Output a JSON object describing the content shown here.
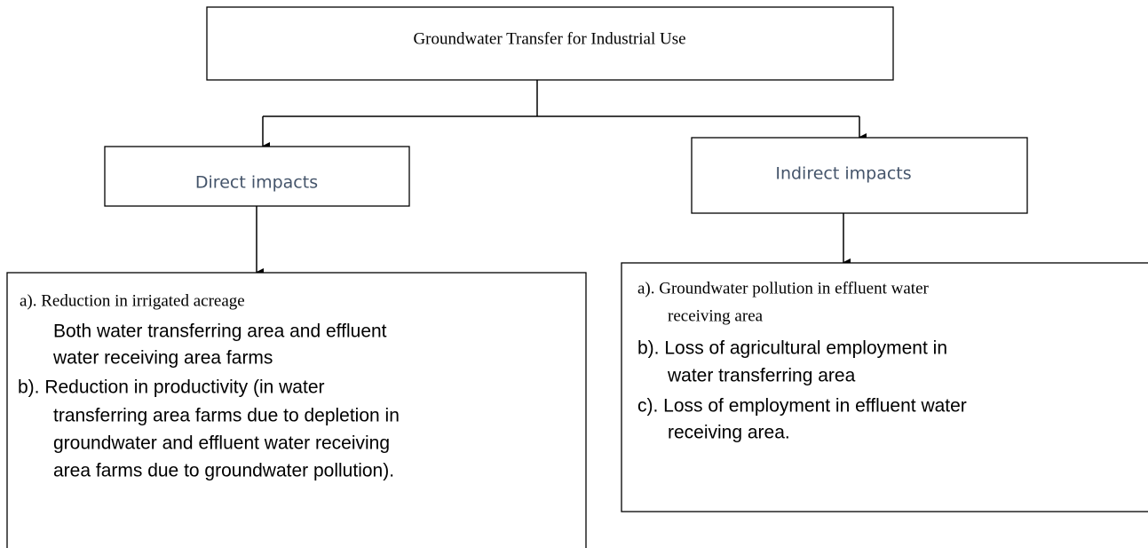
{
  "title": "Groundwater Transfer for Industrial Use",
  "direct": {
    "label": "Direct impacts",
    "lines": [
      "a). Reduction in irrigated acreage",
      "Both water transferring area and effluent",
      "water receiving area farms",
      "b). Reduction in productivity (in water",
      "transferring area farms due to depletion in",
      "groundwater and effluent water receiving",
      "area farms due to groundwater pollution)."
    ]
  },
  "indirect": {
    "label": "Indirect impacts",
    "lines": [
      "a). Groundwater pollution in effluent water",
      "receiving area",
      "b). Loss of agricultural employment in",
      "water transferring area",
      "c). Loss of employment in effluent water",
      "receiving area."
    ]
  }
}
